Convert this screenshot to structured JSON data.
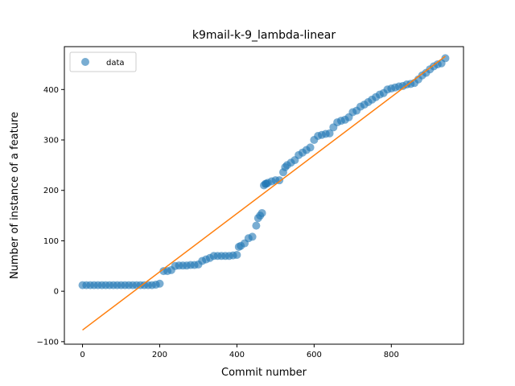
{
  "chart_data": {
    "type": "scatter",
    "title": "k9mail-k-9_lambda-linear",
    "xlabel": "Commit number",
    "ylabel": "Number of instance of a feature",
    "xlim": [
      -47,
      987
    ],
    "ylim": [
      -105,
      485
    ],
    "xticks": [
      0,
      200,
      400,
      600,
      800
    ],
    "yticks": [
      -100,
      0,
      100,
      200,
      300,
      400
    ],
    "grid": false,
    "legend": {
      "position": "top-left",
      "entries": [
        "data"
      ]
    },
    "colors": {
      "data": "#1f77b4",
      "fit": "#ff7f0e"
    },
    "series": [
      {
        "name": "data",
        "kind": "points",
        "x": [
          0,
          10,
          20,
          30,
          40,
          50,
          60,
          70,
          80,
          90,
          100,
          110,
          120,
          130,
          140,
          150,
          160,
          170,
          180,
          190,
          200,
          210,
          220,
          230,
          240,
          250,
          260,
          270,
          280,
          290,
          300,
          310,
          320,
          330,
          340,
          350,
          360,
          370,
          380,
          390,
          400,
          405,
          410,
          420,
          430,
          440,
          450,
          455,
          460,
          465,
          470,
          474,
          476,
          480,
          490,
          500,
          510,
          520,
          525,
          530,
          540,
          550,
          560,
          570,
          580,
          590,
          600,
          610,
          620,
          630,
          640,
          650,
          660,
          670,
          680,
          690,
          700,
          710,
          720,
          730,
          740,
          750,
          760,
          770,
          780,
          790,
          800,
          810,
          820,
          830,
          840,
          850,
          860,
          870,
          880,
          890,
          900,
          910,
          920,
          930,
          940
        ],
        "y": [
          12,
          12,
          12,
          12,
          12,
          12,
          12,
          12,
          12,
          12,
          12,
          12,
          12,
          12,
          12,
          12,
          12,
          12,
          12,
          13,
          15,
          40,
          40,
          42,
          50,
          51,
          51,
          51,
          52,
          52,
          53,
          60,
          63,
          66,
          70,
          70,
          70,
          70,
          70,
          71,
          72,
          88,
          90,
          95,
          105,
          108,
          130,
          145,
          150,
          155,
          210,
          213,
          213,
          215,
          218,
          220,
          220,
          236,
          246,
          250,
          255,
          260,
          270,
          275,
          280,
          285,
          300,
          308,
          310,
          312,
          313,
          325,
          335,
          338,
          340,
          345,
          355,
          358,
          366,
          370,
          375,
          380,
          385,
          390,
          393,
          400,
          402,
          404,
          406,
          407,
          410,
          411,
          413,
          420,
          428,
          433,
          440,
          446,
          450,
          452,
          462
        ]
      },
      {
        "name": "",
        "kind": "line",
        "x": [
          0,
          940
        ],
        "y": [
          -77,
          466
        ]
      }
    ]
  }
}
